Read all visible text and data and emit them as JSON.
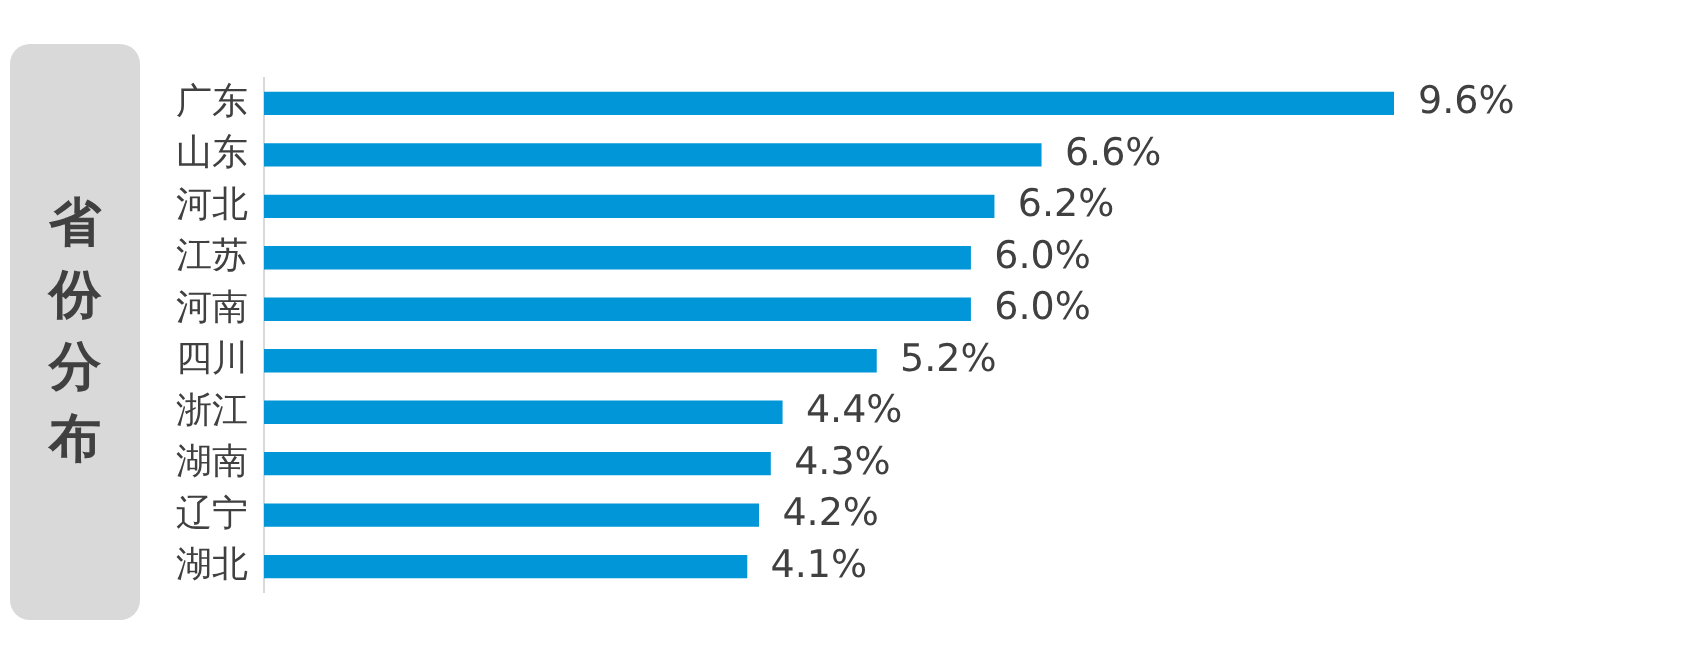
{
  "chart_data": {
    "type": "bar",
    "orientation": "horizontal",
    "title": "省份分布",
    "categories": [
      "广东",
      "山东",
      "河北",
      "江苏",
      "河南",
      "四川",
      "浙江",
      "湖南",
      "辽宁",
      "湖北"
    ],
    "values": [
      9.6,
      6.6,
      6.2,
      6.0,
      6.0,
      5.2,
      4.4,
      4.3,
      4.2,
      4.1
    ],
    "value_labels": [
      "9.6%",
      "6.6%",
      "6.2%",
      "6.0%",
      "6.0%",
      "5.2%",
      "4.4%",
      "4.3%",
      "4.2%",
      "4.1%"
    ],
    "color": "#0096d8",
    "grid": false,
    "legend": false
  }
}
